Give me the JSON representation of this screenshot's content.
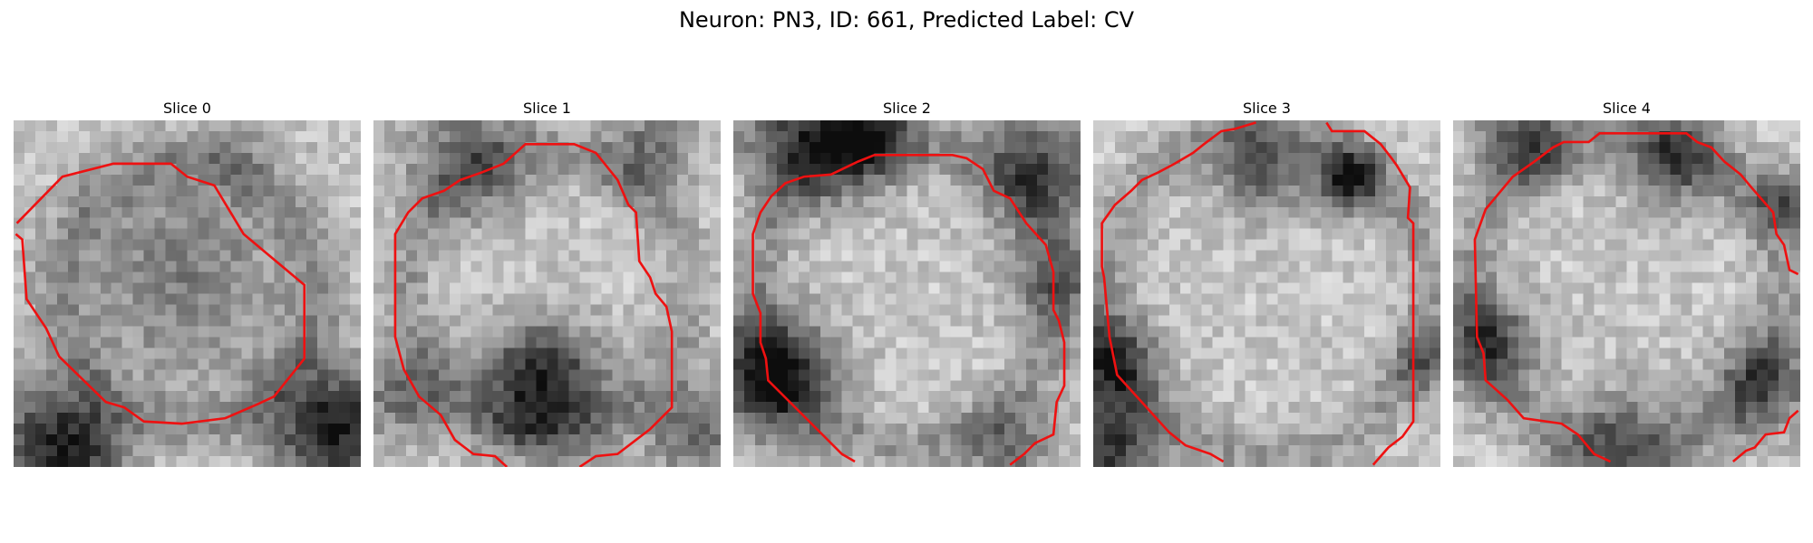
{
  "figure": {
    "title": "Neuron: PN3, ID: 661, Predicted Label: CV"
  },
  "colors": {
    "contour": "#ee1111",
    "background": "#ffffff"
  },
  "slices": [
    {
      "label": "Slice 0",
      "image": "grayscale-microscopy-patch",
      "overlay": "red-cell-contour"
    },
    {
      "label": "Slice 1",
      "image": "grayscale-microscopy-patch",
      "overlay": "red-cell-contour"
    },
    {
      "label": "Slice 2",
      "image": "grayscale-microscopy-patch",
      "overlay": "red-cell-contour"
    },
    {
      "label": "Slice 3",
      "image": "grayscale-microscopy-patch",
      "overlay": "red-cell-contour"
    },
    {
      "label": "Slice 4",
      "image": "grayscale-microscopy-patch",
      "overlay": "red-cell-contour"
    }
  ]
}
